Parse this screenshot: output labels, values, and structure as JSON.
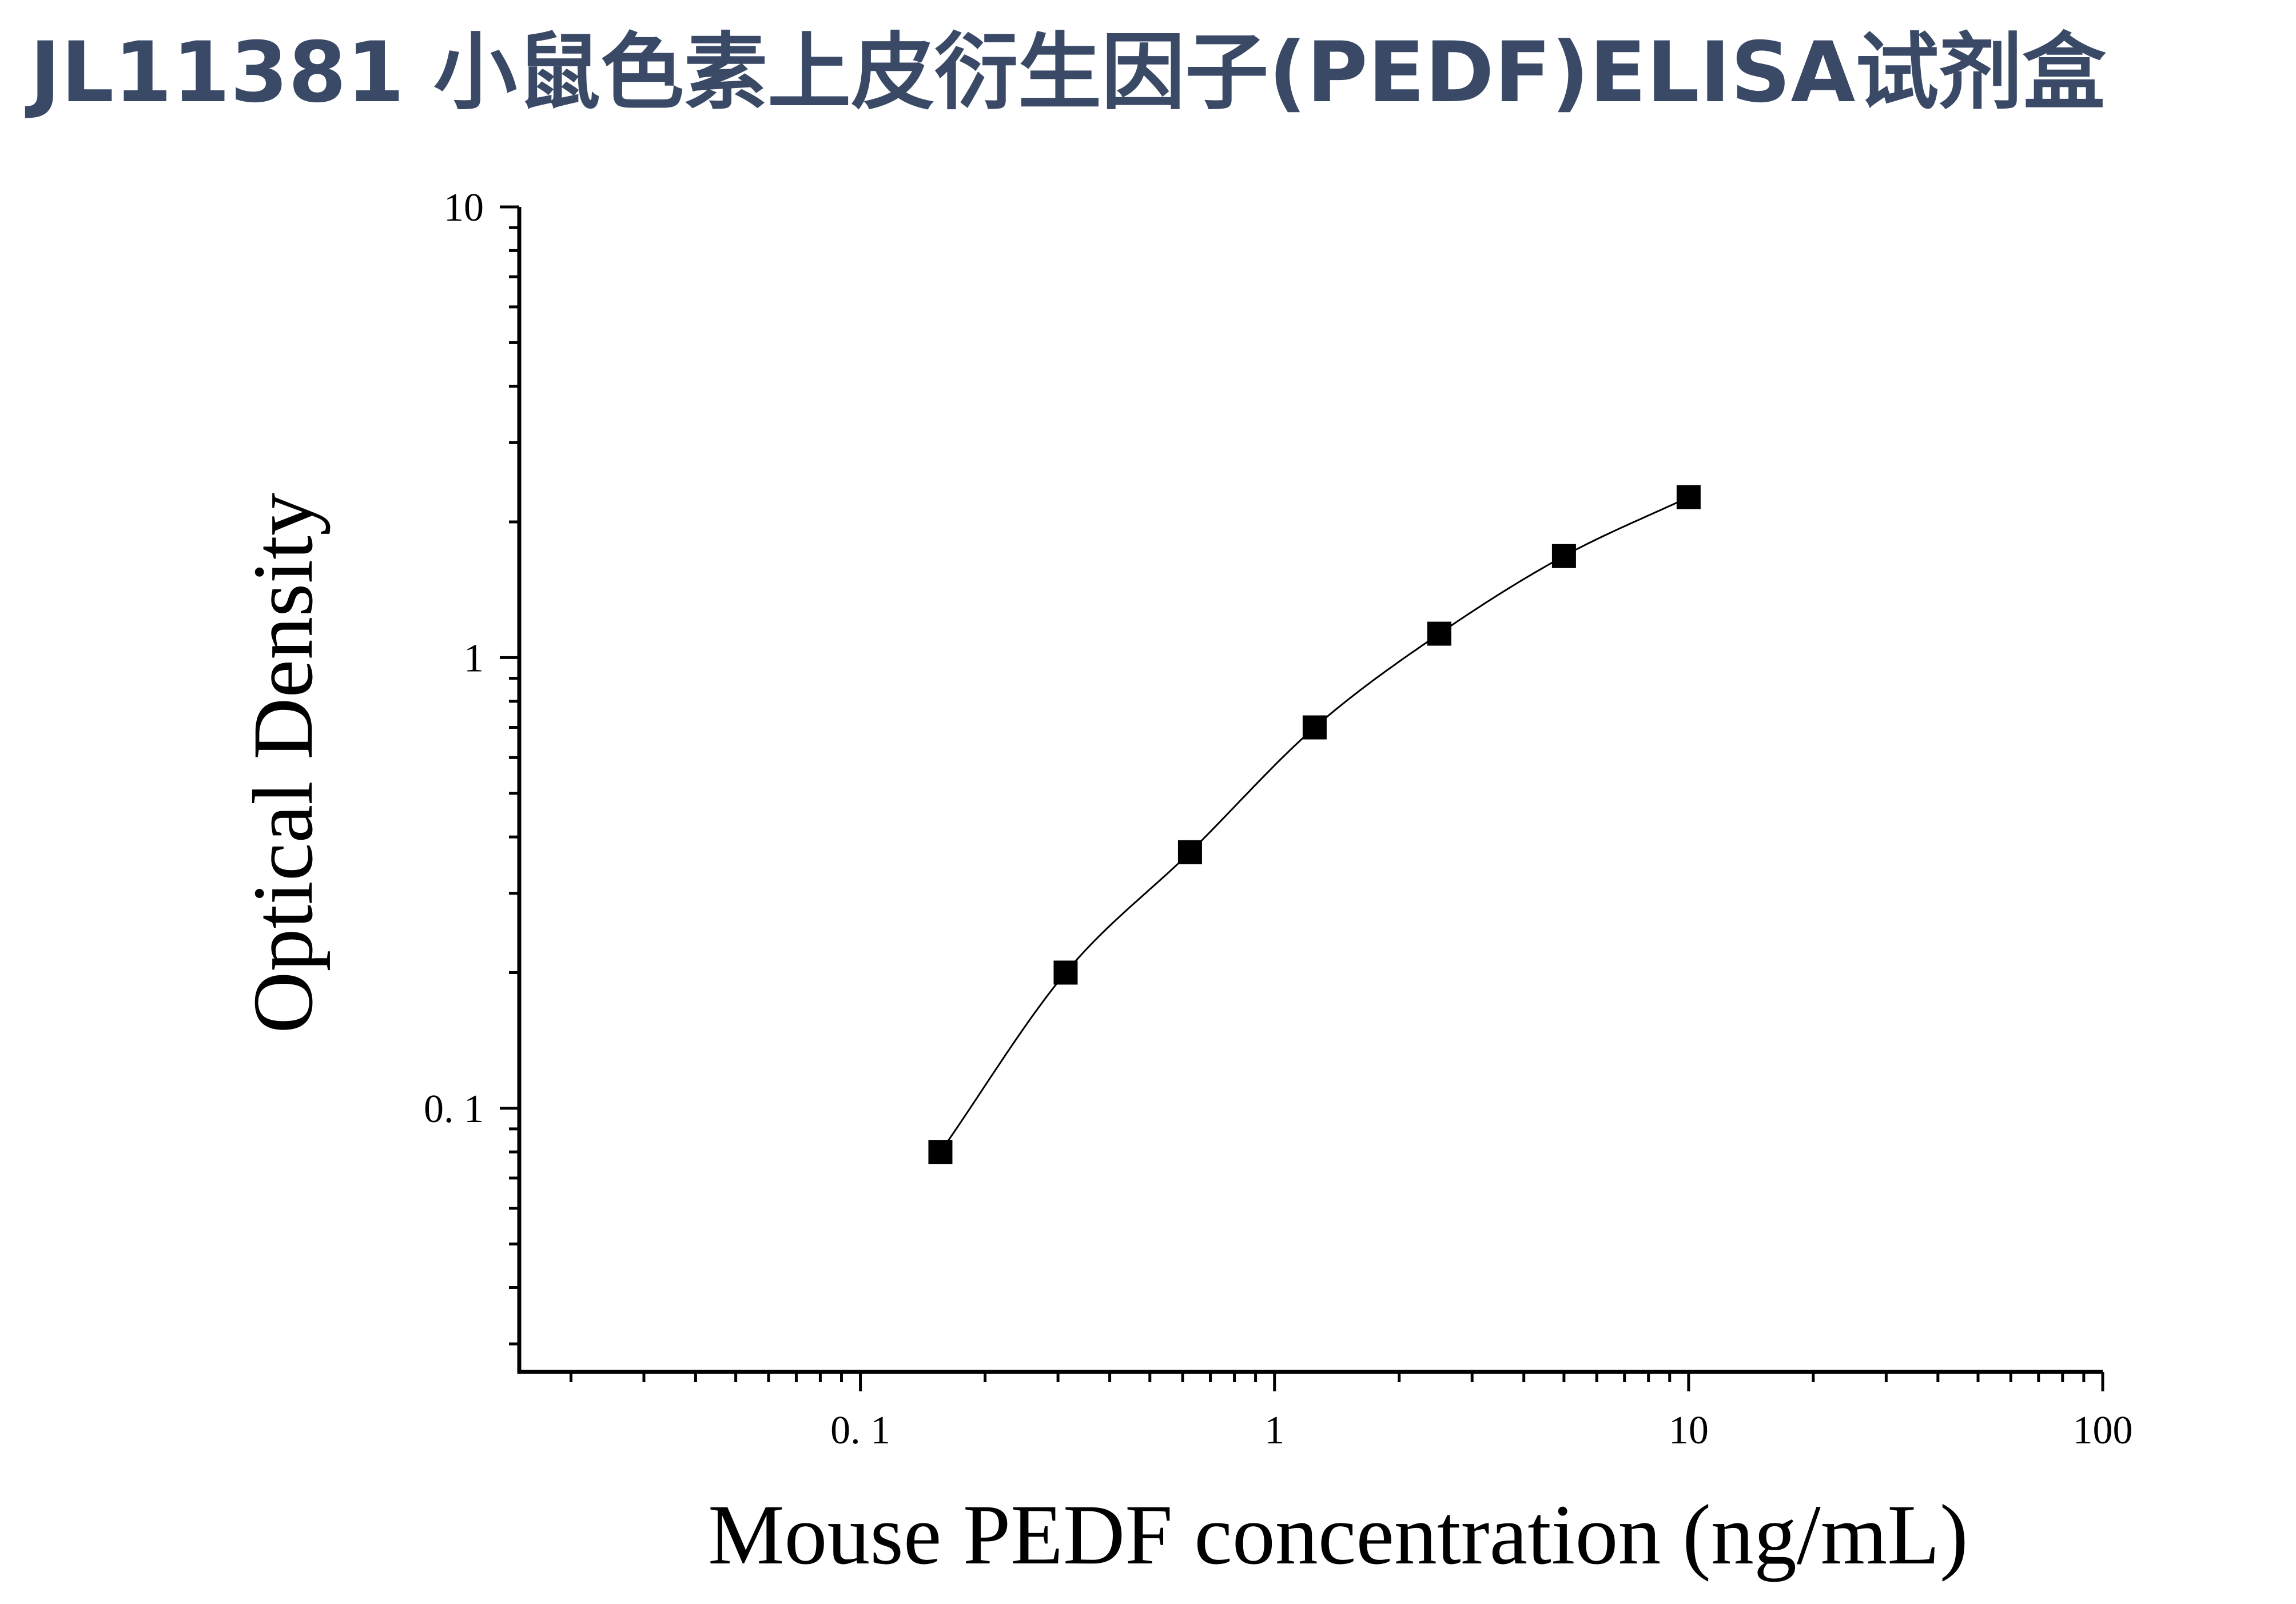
{
  "title": "JL11381 小鼠色素上皮衍生因子(PEDF)ELISA试剂盒",
  "colors": {
    "title": "#3a4a66",
    "axis": "#000000",
    "marker": "#000000",
    "curve": "#000000"
  },
  "chart_data": {
    "type": "scatter",
    "title": "",
    "xlabel": "Mouse PEDF concentration (ng/mL)",
    "ylabel": "Optical Density",
    "xscale": "log",
    "yscale": "log",
    "xlim": [
      0.015,
      100
    ],
    "ylim": [
      0.026,
      10
    ],
    "x_ticks": [
      0.1,
      1,
      10,
      100
    ],
    "x_tick_labels": [
      "0. 1",
      "1",
      "10",
      "100"
    ],
    "y_ticks": [
      0.1,
      1,
      10
    ],
    "y_tick_labels": [
      "0. 1",
      "1",
      "10"
    ],
    "grid": false,
    "legend": "none",
    "marker": "square",
    "fit_curve": true,
    "series": [
      {
        "x": [
          0.156,
          0.313,
          0.625,
          1.25,
          2.5,
          5,
          10
        ],
        "y": [
          0.08,
          0.2,
          0.37,
          0.7,
          1.13,
          1.68,
          2.27
        ]
      }
    ]
  }
}
